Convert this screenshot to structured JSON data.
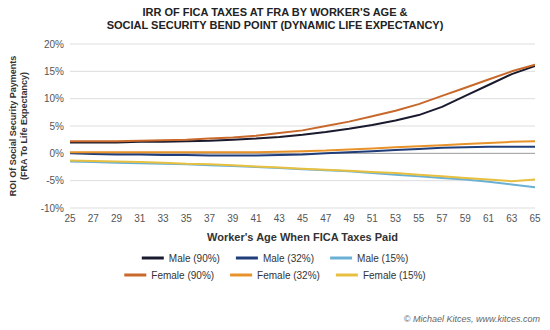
{
  "chart_data": {
    "type": "line",
    "title": "IRR OF FICA TAXES AT FRA BY WORKER'S AGE &\nSOCIAL SECURITY BEND POINT (DYNAMIC LIFE EXPECTANCY)",
    "xlabel": "Worker's Age When FICA Taxes Paid",
    "ylabel": "ROI Of Social Security Payments\n(FRA To Life Expectancy)",
    "annotations": [
      "© Michael Kitces, www.kitces.com"
    ],
    "x": [
      25,
      27,
      29,
      31,
      33,
      35,
      37,
      39,
      41,
      43,
      45,
      47,
      49,
      51,
      53,
      55,
      57,
      59,
      61,
      63,
      65
    ],
    "series": [
      {
        "name": "Male (90%)",
        "color": "#1a1a2e",
        "values": [
          2.0,
          2.0,
          2.0,
          2.1,
          2.1,
          2.2,
          2.3,
          2.5,
          2.7,
          3.0,
          3.4,
          3.9,
          4.5,
          5.2,
          6.0,
          7.0,
          8.5,
          10.5,
          12.5,
          14.5,
          16.0
        ]
      },
      {
        "name": "Male (32%)",
        "color": "#1f3d7a",
        "values": [
          0.0,
          -0.1,
          -0.2,
          -0.2,
          -0.3,
          -0.3,
          -0.4,
          -0.4,
          -0.4,
          -0.3,
          -0.2,
          0.0,
          0.2,
          0.4,
          0.6,
          0.8,
          1.0,
          1.1,
          1.2,
          1.2,
          1.2
        ]
      },
      {
        "name": "Male (15%)",
        "color": "#6ab0d4",
        "values": [
          -1.5,
          -1.6,
          -1.7,
          -1.8,
          -1.9,
          -2.0,
          -2.2,
          -2.3,
          -2.5,
          -2.7,
          -2.9,
          -3.1,
          -3.3,
          -3.6,
          -3.9,
          -4.2,
          -4.5,
          -4.8,
          -5.2,
          -5.7,
          -6.2
        ]
      },
      {
        "name": "Female (90%)",
        "color": "#c8682a",
        "values": [
          2.2,
          2.2,
          2.2,
          2.3,
          2.4,
          2.5,
          2.7,
          2.9,
          3.2,
          3.7,
          4.2,
          5.0,
          5.8,
          6.8,
          7.8,
          9.0,
          10.5,
          12.0,
          13.5,
          15.0,
          16.2
        ]
      },
      {
        "name": "Female (32%)",
        "color": "#e8922a",
        "values": [
          0.2,
          0.2,
          0.2,
          0.2,
          0.2,
          0.2,
          0.2,
          0.2,
          0.2,
          0.3,
          0.4,
          0.5,
          0.7,
          0.9,
          1.1,
          1.3,
          1.5,
          1.7,
          1.9,
          2.1,
          2.2
        ]
      },
      {
        "name": "Female (15%)",
        "color": "#e8c040",
        "values": [
          -1.3,
          -1.4,
          -1.5,
          -1.6,
          -1.7,
          -1.9,
          -2.0,
          -2.2,
          -2.4,
          -2.6,
          -2.8,
          -3.0,
          -3.2,
          -3.4,
          -3.6,
          -3.9,
          -4.2,
          -4.5,
          -4.8,
          -5.1,
          -4.8
        ]
      }
    ],
    "xlim": [
      25,
      65
    ],
    "xticks": [
      25,
      27,
      29,
      31,
      33,
      35,
      37,
      39,
      41,
      43,
      45,
      47,
      49,
      51,
      53,
      55,
      57,
      59,
      61,
      63,
      65
    ],
    "ylim": [
      -10,
      20
    ],
    "yticks": [
      {
        "value": -10,
        "label": "-10%"
      },
      {
        "value": -5,
        "label": "-5%"
      },
      {
        "value": 0,
        "label": "0%"
      },
      {
        "value": 5,
        "label": "5%"
      },
      {
        "value": 10,
        "label": "10%"
      },
      {
        "value": 15,
        "label": "15%"
      },
      {
        "value": 20,
        "label": "20%"
      }
    ],
    "grid": "y",
    "legend": "bottom"
  }
}
